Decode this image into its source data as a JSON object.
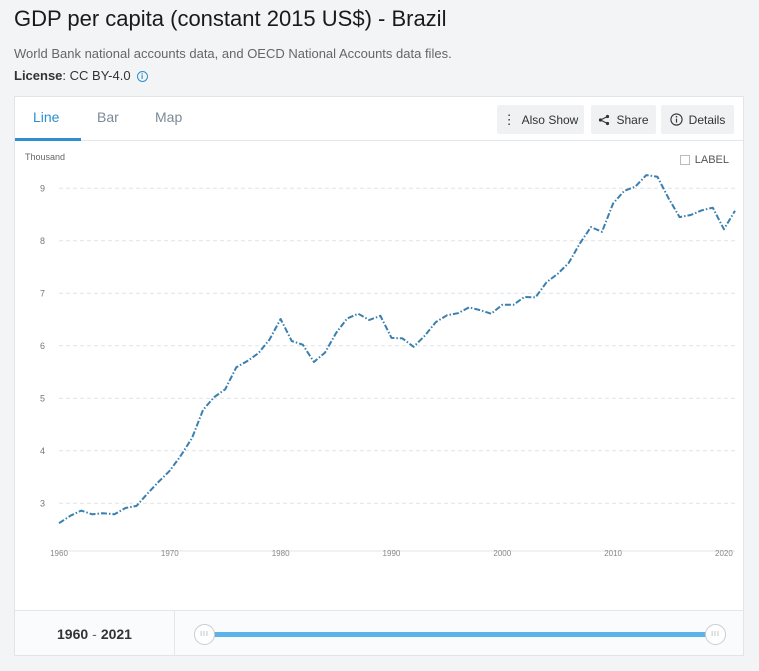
{
  "header": {
    "title": "GDP per capita (constant 2015 US$) - Brazil",
    "source": "World Bank national accounts data, and OECD National Accounts data files.",
    "license_label": "License",
    "license_value": ": CC BY-4.0"
  },
  "tabs": [
    {
      "label": "Line",
      "active": true
    },
    {
      "label": "Bar",
      "active": false
    },
    {
      "label": "Map",
      "active": false
    }
  ],
  "toolbar": {
    "also_show": "Also Show",
    "share": "Share",
    "details": "Details"
  },
  "chart_options": {
    "label_toggle": "LABEL",
    "label_checked": false
  },
  "range": {
    "start": "1960",
    "end": "2021",
    "separator": "-"
  },
  "colors": {
    "accent": "#2d8fd0",
    "line": "#3a7fae",
    "slider": "#5db3e8"
  },
  "chart_data": {
    "type": "line",
    "title": "",
    "xlabel": "",
    "ylabel": "Thousand",
    "xlim": [
      1960,
      2021
    ],
    "ylim": [
      2.3,
      9.5
    ],
    "grid": true,
    "line_style": "dash-dot",
    "x_ticks": [
      1960,
      1970,
      1980,
      1990,
      2000,
      2010,
      2020
    ],
    "y_ticks": [
      3,
      4,
      5,
      6,
      7,
      8,
      9
    ],
    "x": [
      1960,
      1961,
      1962,
      1963,
      1964,
      1965,
      1966,
      1967,
      1968,
      1969,
      1970,
      1971,
      1972,
      1973,
      1974,
      1975,
      1976,
      1977,
      1978,
      1979,
      1980,
      1981,
      1982,
      1983,
      1984,
      1985,
      1986,
      1987,
      1988,
      1989,
      1990,
      1991,
      1992,
      1993,
      1994,
      1995,
      1996,
      1997,
      1998,
      1999,
      2000,
      2001,
      2002,
      2003,
      2004,
      2005,
      2006,
      2007,
      2008,
      2009,
      2010,
      2011,
      2012,
      2013,
      2014,
      2015,
      2016,
      2017,
      2018,
      2019,
      2020,
      2021
    ],
    "series": [
      {
        "values": [
          2.62,
          2.76,
          2.86,
          2.79,
          2.81,
          2.79,
          2.91,
          2.95,
          3.19,
          3.41,
          3.62,
          3.91,
          4.24,
          4.78,
          5.02,
          5.17,
          5.59,
          5.71,
          5.86,
          6.12,
          6.51,
          6.09,
          6.02,
          5.69,
          5.87,
          6.24,
          6.52,
          6.61,
          6.49,
          6.57,
          6.15,
          6.14,
          5.98,
          6.19,
          6.45,
          6.58,
          6.62,
          6.73,
          6.68,
          6.61,
          6.78,
          6.78,
          6.93,
          6.92,
          7.21,
          7.37,
          7.58,
          7.95,
          8.26,
          8.17,
          8.71,
          8.95,
          9.03,
          9.25,
          9.22,
          8.81,
          8.45,
          8.49,
          8.58,
          8.63,
          8.22,
          8.57
        ]
      }
    ]
  }
}
